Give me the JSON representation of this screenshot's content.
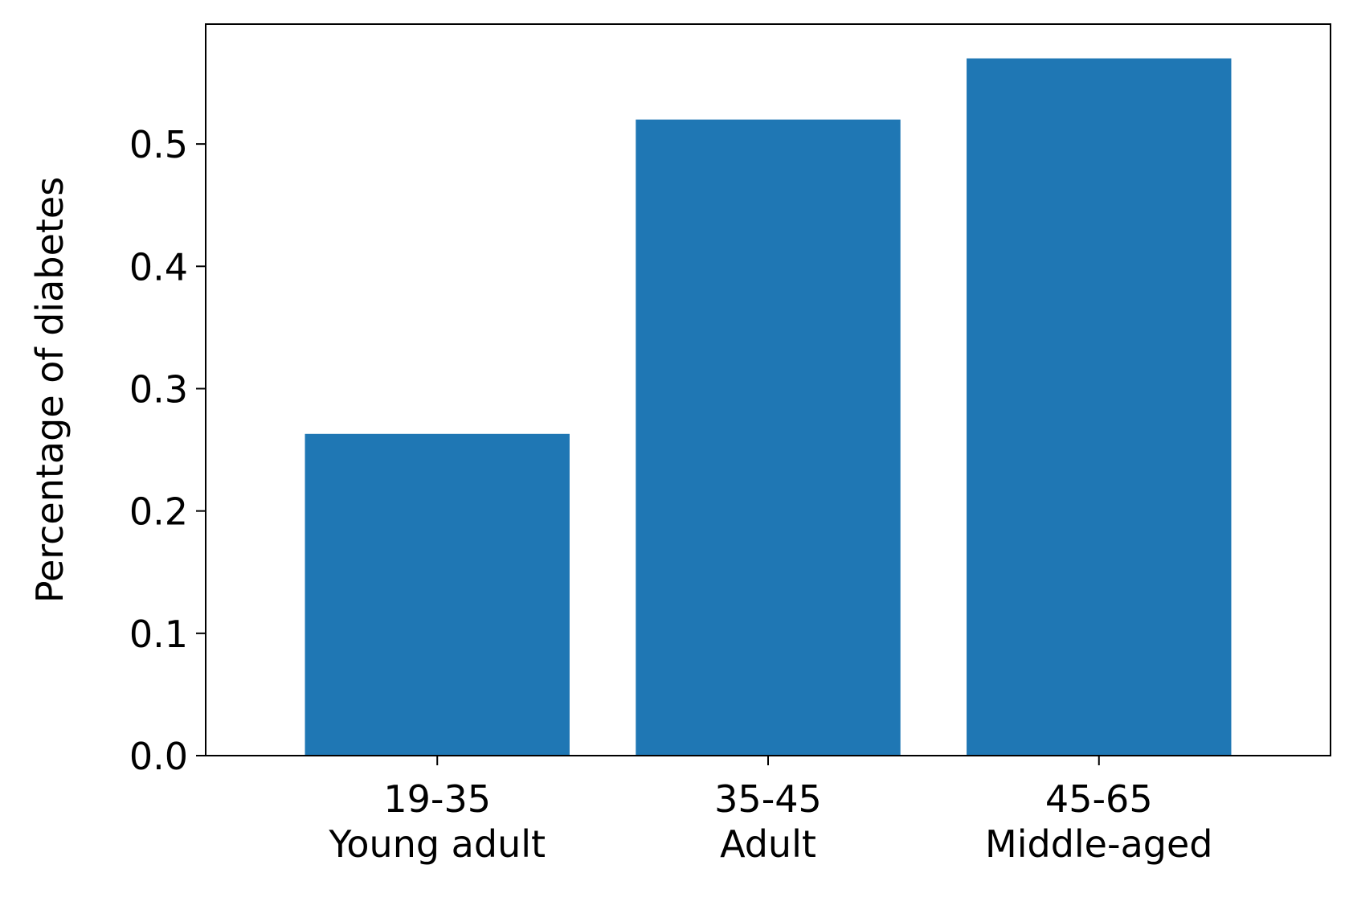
{
  "chart_data": {
    "type": "bar",
    "title": "",
    "xlabel": "",
    "ylabel": "Percentage of diabetes",
    "categories": [
      [
        "19-35",
        "Young adult"
      ],
      [
        "35-45",
        "Adult"
      ],
      [
        "45-65",
        "Middle-aged"
      ]
    ],
    "values": [
      0.263,
      0.52,
      0.57
    ],
    "ylim": [
      0,
      0.598
    ],
    "yticks": [
      "0.0",
      "0.1",
      "0.2",
      "0.3",
      "0.4",
      "0.5"
    ],
    "bar_color": "#1f77b4",
    "grid": false,
    "legend": "none"
  }
}
